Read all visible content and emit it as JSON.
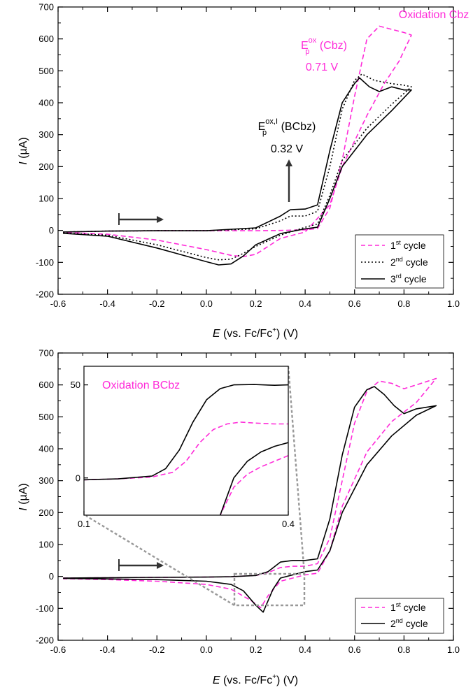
{
  "colors": {
    "first_cycle": "#ff2bd9",
    "other_cycles": "#000000",
    "zoom_box": "#999999"
  },
  "chart_data": [
    {
      "type": "line",
      "xlabel_italic": "E",
      "xlabel_rest": " (vs. Fc/Fc",
      "xlabel_sup": "+",
      "xlabel_end": ") (V)",
      "ylabel_italic": "I",
      "ylabel_rest": " (µA)",
      "xlim": [
        -0.6,
        1.0
      ],
      "ylim": [
        -200,
        700
      ],
      "xticks": [
        "-0.6",
        "-0.4",
        "-0.2",
        "0.0",
        "0.2",
        "0.4",
        "0.6",
        "0.8",
        "1.0"
      ],
      "yticks": [
        "-200",
        "-100",
        "0",
        "100",
        "200",
        "300",
        "400",
        "500",
        "600",
        "700"
      ],
      "title_annotation": "Oxidation Cbz",
      "annotations": [
        {
          "main": "E",
          "sub": "p",
          "sup": "ox",
          "rest": " (Cbz)",
          "value": "0.71 V",
          "color": "#ff2bd9"
        },
        {
          "main": "E",
          "sub": "p",
          "sup": "ox,I",
          "rest": " (BCbz)",
          "value": "0.32 V",
          "color": "#000000"
        }
      ],
      "legend": {
        "position": "bottom-right",
        "entries": [
          {
            "base": "1",
            "sup": "st",
            "rest": " cycle"
          },
          {
            "base": "2",
            "sup": "nd",
            "rest": " cycle"
          },
          {
            "base": "3",
            "sup": "rd",
            "rest": " cycle"
          }
        ]
      },
      "series": [
        {
          "style": "dashed",
          "color": "#ff2bd9",
          "points": [
            [
              -0.58,
              -5
            ],
            [
              -0.4,
              -2
            ],
            [
              -0.2,
              -1
            ],
            [
              0.0,
              -1
            ],
            [
              0.2,
              -1
            ],
            [
              0.3,
              0
            ],
            [
              0.4,
              2
            ],
            [
              0.45,
              6
            ],
            [
              0.5,
              70
            ],
            [
              0.55,
              220
            ],
            [
              0.6,
              420
            ],
            [
              0.65,
              600
            ],
            [
              0.7,
              640
            ],
            [
              0.76,
              628
            ],
            [
              0.8,
              620
            ],
            [
              0.83,
              612
            ],
            [
              0.78,
              530
            ],
            [
              0.72,
              460
            ],
            [
              0.65,
              360
            ],
            [
              0.55,
              200
            ],
            [
              0.5,
              80
            ],
            [
              0.4,
              -5
            ],
            [
              0.3,
              -25
            ],
            [
              0.2,
              -75
            ],
            [
              0.15,
              -82
            ],
            [
              0.1,
              -78
            ],
            [
              0.0,
              -60
            ],
            [
              -0.2,
              -30
            ],
            [
              -0.4,
              -12
            ],
            [
              -0.58,
              -6
            ]
          ]
        },
        {
          "style": "dotted",
          "color": "#000000",
          "points": [
            [
              -0.58,
              -5
            ],
            [
              -0.4,
              -2
            ],
            [
              -0.2,
              -1
            ],
            [
              0.0,
              -1
            ],
            [
              0.2,
              5
            ],
            [
              0.3,
              30
            ],
            [
              0.34,
              45
            ],
            [
              0.4,
              45
            ],
            [
              0.45,
              60
            ],
            [
              0.5,
              200
            ],
            [
              0.55,
              380
            ],
            [
              0.6,
              470
            ],
            [
              0.63,
              490
            ],
            [
              0.68,
              470
            ],
            [
              0.75,
              460
            ],
            [
              0.8,
              455
            ],
            [
              0.83,
              450
            ],
            [
              0.75,
              395
            ],
            [
              0.65,
              320
            ],
            [
              0.55,
              220
            ],
            [
              0.5,
              110
            ],
            [
              0.45,
              20
            ],
            [
              0.4,
              10
            ],
            [
              0.3,
              -15
            ],
            [
              0.2,
              -50
            ],
            [
              0.15,
              -72
            ],
            [
              0.1,
              -90
            ],
            [
              0.05,
              -92
            ],
            [
              0.0,
              -85
            ],
            [
              -0.2,
              -45
            ],
            [
              -0.4,
              -15
            ],
            [
              -0.58,
              -8
            ]
          ]
        },
        {
          "style": "solid",
          "color": "#000000",
          "points": [
            [
              -0.58,
              -5
            ],
            [
              -0.4,
              -2
            ],
            [
              -0.2,
              -1
            ],
            [
              0.0,
              -1
            ],
            [
              0.2,
              8
            ],
            [
              0.3,
              45
            ],
            [
              0.34,
              65
            ],
            [
              0.4,
              67
            ],
            [
              0.45,
              80
            ],
            [
              0.5,
              250
            ],
            [
              0.55,
              400
            ],
            [
              0.6,
              460
            ],
            [
              0.62,
              478
            ],
            [
              0.66,
              450
            ],
            [
              0.7,
              435
            ],
            [
              0.75,
              450
            ],
            [
              0.8,
              440
            ],
            [
              0.83,
              440
            ],
            [
              0.75,
              375
            ],
            [
              0.65,
              300
            ],
            [
              0.55,
              200
            ],
            [
              0.5,
              100
            ],
            [
              0.45,
              10
            ],
            [
              0.4,
              5
            ],
            [
              0.3,
              -10
            ],
            [
              0.2,
              -45
            ],
            [
              0.15,
              -80
            ],
            [
              0.1,
              -105
            ],
            [
              0.05,
              -108
            ],
            [
              0.0,
              -98
            ],
            [
              -0.2,
              -55
            ],
            [
              -0.4,
              -18
            ],
            [
              -0.58,
              -9
            ]
          ]
        }
      ]
    },
    {
      "type": "line",
      "xlabel_italic": "E",
      "xlabel_rest": " (vs. Fc/Fc",
      "xlabel_sup": "+",
      "xlabel_end": ") (V)",
      "ylabel_italic": "I",
      "ylabel_rest": " (µA)",
      "xlim": [
        -0.6,
        1.0
      ],
      "ylim": [
        -200,
        700
      ],
      "xticks": [
        "-0.6",
        "-0.4",
        "-0.2",
        "0.0",
        "0.2",
        "0.4",
        "0.6",
        "0.8",
        "1.0"
      ],
      "yticks": [
        "-200",
        "-100",
        "0",
        "100",
        "200",
        "300",
        "400",
        "500",
        "600",
        "700"
      ],
      "legend": {
        "position": "bottom-right",
        "entries": [
          {
            "base": "1",
            "sup": "st",
            "rest": " cycle"
          },
          {
            "base": "2",
            "sup": "nd",
            "rest": " cycle"
          }
        ]
      },
      "series": [
        {
          "style": "dashed",
          "color": "#ff2bd9",
          "points": [
            [
              -0.58,
              -5
            ],
            [
              -0.4,
              -4
            ],
            [
              -0.2,
              -3
            ],
            [
              0.0,
              -2
            ],
            [
              0.1,
              -1
            ],
            [
              0.2,
              3
            ],
            [
              0.25,
              12
            ],
            [
              0.3,
              28
            ],
            [
              0.35,
              32
            ],
            [
              0.4,
              32
            ],
            [
              0.45,
              40
            ],
            [
              0.5,
              120
            ],
            [
              0.55,
              300
            ],
            [
              0.6,
              480
            ],
            [
              0.65,
              580
            ],
            [
              0.7,
              612
            ],
            [
              0.75,
              605
            ],
            [
              0.8,
              588
            ],
            [
              0.85,
              600
            ],
            [
              0.93,
              620
            ],
            [
              0.85,
              545
            ],
            [
              0.75,
              485
            ],
            [
              0.65,
              390
            ],
            [
              0.55,
              220
            ],
            [
              0.5,
              80
            ],
            [
              0.45,
              10
            ],
            [
              0.4,
              5
            ],
            [
              0.3,
              -15
            ],
            [
              0.25,
              -60
            ],
            [
              0.22,
              -98
            ],
            [
              0.18,
              -75
            ],
            [
              0.1,
              -40
            ],
            [
              0.0,
              -25
            ],
            [
              -0.2,
              -15
            ],
            [
              -0.4,
              -10
            ],
            [
              -0.58,
              -7
            ]
          ]
        },
        {
          "style": "solid",
          "color": "#000000",
          "points": [
            [
              -0.58,
              -5
            ],
            [
              -0.4,
              -4
            ],
            [
              -0.2,
              -3
            ],
            [
              0.0,
              -2
            ],
            [
              0.1,
              -1
            ],
            [
              0.2,
              3
            ],
            [
              0.25,
              15
            ],
            [
              0.3,
              45
            ],
            [
              0.35,
              50
            ],
            [
              0.4,
              50
            ],
            [
              0.45,
              55
            ],
            [
              0.5,
              180
            ],
            [
              0.55,
              380
            ],
            [
              0.6,
              530
            ],
            [
              0.65,
              585
            ],
            [
              0.68,
              595
            ],
            [
              0.72,
              570
            ],
            [
              0.76,
              535
            ],
            [
              0.8,
              510
            ],
            [
              0.85,
              525
            ],
            [
              0.93,
              535
            ],
            [
              0.85,
              505
            ],
            [
              0.75,
              440
            ],
            [
              0.65,
              350
            ],
            [
              0.55,
              200
            ],
            [
              0.5,
              80
            ],
            [
              0.45,
              20
            ],
            [
              0.4,
              15
            ],
            [
              0.3,
              -5
            ],
            [
              0.27,
              -40
            ],
            [
              0.23,
              -112
            ],
            [
              0.2,
              -90
            ],
            [
              0.15,
              -45
            ],
            [
              0.1,
              -25
            ],
            [
              0.0,
              -15
            ],
            [
              -0.2,
              -10
            ],
            [
              -0.4,
              -8
            ],
            [
              -0.58,
              -6
            ]
          ]
        }
      ],
      "inset": {
        "title": "Oxidation BCbz",
        "xlim": [
          0.1,
          0.4
        ],
        "ylim": [
          -20,
          60
        ],
        "xticks": [
          "0.1",
          "0.4"
        ],
        "yticks": [
          "0",
          "50"
        ],
        "series": [
          {
            "style": "dashed",
            "color": "#ff2bd9",
            "points_fwd": [
              [
                0.1,
                -1
              ],
              [
                0.15,
                -0.5
              ],
              [
                0.2,
                0.5
              ],
              [
                0.23,
                3
              ],
              [
                0.25,
                9
              ],
              [
                0.27,
                19
              ],
              [
                0.29,
                26
              ],
              [
                0.31,
                29
              ],
              [
                0.33,
                30
              ],
              [
                0.35,
                29.5
              ],
              [
                0.38,
                29
              ],
              [
                0.4,
                29
              ]
            ],
            "points_rev": [
              [
                0.4,
                12
              ],
              [
                0.38,
                9
              ],
              [
                0.36,
                6
              ],
              [
                0.34,
                2
              ],
              [
                0.32,
                -5
              ],
              [
                0.3,
                -20
              ]
            ]
          },
          {
            "style": "solid",
            "color": "#000000",
            "points_fwd": [
              [
                0.1,
                -1
              ],
              [
                0.15,
                -0.5
              ],
              [
                0.2,
                1
              ],
              [
                0.22,
                5
              ],
              [
                0.24,
                15
              ],
              [
                0.26,
                30
              ],
              [
                0.28,
                42
              ],
              [
                0.3,
                48
              ],
              [
                0.32,
                50
              ],
              [
                0.35,
                50.2
              ],
              [
                0.38,
                49.8
              ],
              [
                0.4,
                50
              ]
            ],
            "points_rev": [
              [
                0.4,
                19
              ],
              [
                0.38,
                17
              ],
              [
                0.36,
                14
              ],
              [
                0.34,
                9
              ],
              [
                0.32,
                0
              ],
              [
                0.3,
                -20
              ]
            ]
          }
        ]
      }
    }
  ]
}
